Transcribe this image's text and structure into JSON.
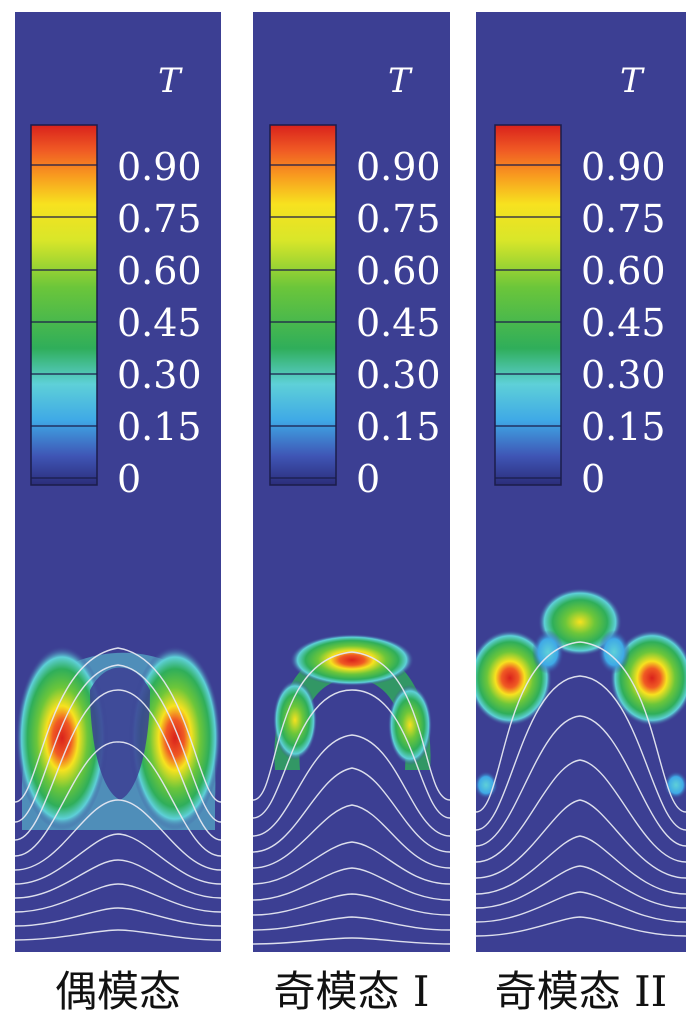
{
  "colorbar": {
    "title": "T",
    "ticks": [
      "0.90",
      "0.75",
      "0.60",
      "0.45",
      "0.30",
      "0.15",
      "0"
    ]
  },
  "panels": [
    {
      "caption": "偶模态"
    },
    {
      "caption": "奇模态 I"
    },
    {
      "caption": "奇模态 II"
    }
  ],
  "colors": {
    "background": "#3c3f93",
    "colormap": [
      "#2b2d7a",
      "#3f55b5",
      "#3fa9e6",
      "#5ed0d8",
      "#2fae5a",
      "#6cc63a",
      "#d9e629",
      "#f7e21f",
      "#f89a1f",
      "#f05a24",
      "#d9221c"
    ]
  }
}
